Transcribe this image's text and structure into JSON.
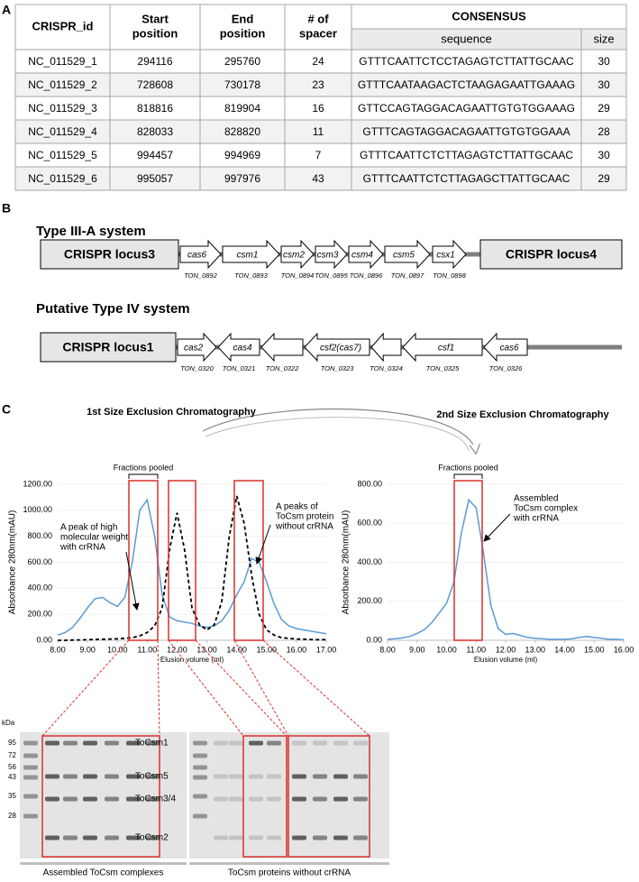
{
  "panel_labels": [
    "A",
    "B",
    "C"
  ],
  "table": {
    "header": [
      [
        "CRISPR_id"
      ],
      [
        "Start",
        "position"
      ],
      [
        "End",
        "position"
      ],
      [
        "# of",
        "spacer"
      ]
    ],
    "consensus": "CONSENSUS",
    "subheader": [
      "sequence",
      "size"
    ],
    "rows": [
      [
        "NC_011529_1",
        294116,
        295760,
        24,
        "GTTTCAATTCTCCTAGAGTCTTATTGCAAC",
        30
      ],
      [
        "NC_011529_2",
        728608,
        730178,
        23,
        "GTTTCAATAAGACTCTAAGAGAATTGAAAG",
        30
      ],
      [
        "NC_011529_3",
        818816,
        819904,
        16,
        "GTTCCAGTAGGACAGAATTGTGTGGAAAG",
        29
      ],
      [
        "NC_011529_4",
        828033,
        828820,
        11,
        "GTTTCAGTAGGACAGAATTGTGTGGAAA",
        28
      ],
      [
        "NC_011529_5",
        994457,
        994969,
        7,
        "GTTTCAATTCTCTTAGAGTCTTATTGCAAC",
        30
      ],
      [
        "NC_011529_6",
        995057,
        997976,
        43,
        "GTTTCAATTCTCTTAGAGCTTATTGCAAC",
        29
      ]
    ]
  },
  "systems": [
    {
      "title": "Type III-A system",
      "left": "CRISPR locus3",
      "right": "CRISPR locus4",
      "genes": [
        {
          "name": "cas6",
          "id": "TON_0892"
        },
        {
          "name": "csm1",
          "id": "TON_0893"
        },
        {
          "name": "csm2",
          "id": "TON_0894"
        },
        {
          "name": "csm3",
          "id": "TON_0895"
        },
        {
          "name": "csm4",
          "id": "TON_0896"
        },
        {
          "name": "csm5",
          "id": "TON_0897"
        },
        {
          "name": "csx1",
          "id": "TON_0898"
        }
      ]
    },
    {
      "title": "Putative Type IV system",
      "left": "CRISPR locus1",
      "genes": [
        {
          "name": "cas2",
          "id": "TON_0320"
        },
        {
          "name": "cas4",
          "id": "TON_0321"
        },
        {
          "id": "TON_0322"
        },
        {
          "name": "csf2(cas7)",
          "id": "TON_0323"
        },
        {
          "id": "TON_0324"
        },
        {
          "name": "csf1",
          "id": "TON_0325"
        },
        {
          "name": "cas6",
          "id": "TON_0326"
        }
      ]
    }
  ],
  "chart_data": [
    {
      "type": "line",
      "title": "1st Size Exclusion Chromatography",
      "xlabel": "Elusion volume (ml)",
      "ylabel": "Absorbance 280nm(mAU)",
      "fraction_label": "Fractions pooled",
      "annotations": [
        [
          "A peak of high",
          "molecular weight",
          "with crRNA"
        ],
        [
          "A peaks of",
          "ToCsm protein",
          "without crRNA"
        ]
      ],
      "x": [
        8,
        8.25,
        8.5,
        8.75,
        9,
        9.25,
        9.5,
        9.75,
        10,
        10.25,
        10.5,
        10.75,
        11,
        11.25,
        11.5,
        11.75,
        12,
        12.25,
        12.5,
        12.75,
        13,
        13.25,
        13.5,
        13.75,
        14,
        14.25,
        14.5,
        14.75,
        15,
        15.25,
        15.5,
        15.75,
        16,
        16.25,
        16.5,
        16.75,
        17
      ],
      "series": [
        {
          "color": "#5b9bd5",
          "dashed": false,
          "values": [
            40,
            60,
            100,
            170,
            250,
            320,
            330,
            290,
            260,
            330,
            600,
            1000,
            1080,
            800,
            350,
            180,
            150,
            140,
            130,
            110,
            100,
            110,
            150,
            230,
            350,
            450,
            630,
            600,
            450,
            280,
            160,
            110,
            90,
            80,
            70,
            60,
            50
          ]
        },
        {
          "color": "#000000",
          "dashed": true,
          "values": [
            0,
            0,
            2,
            3,
            5,
            6,
            8,
            10,
            12,
            15,
            20,
            35,
            60,
            110,
            250,
            700,
            980,
            700,
            250,
            120,
            80,
            120,
            300,
            800,
            1110,
            900,
            500,
            200,
            80,
            40,
            20,
            15,
            10,
            8,
            6,
            5,
            5
          ]
        }
      ],
      "xlim": [
        8,
        17
      ],
      "xticks": [
        {
          "value": 8,
          "label": "8.00"
        },
        {
          "value": 9,
          "label": "9.00"
        },
        {
          "value": 10,
          "label": "10.00"
        },
        {
          "value": 11,
          "label": "11.00"
        },
        {
          "value": 12,
          "label": "12.00"
        },
        {
          "value": 13,
          "label": "13.00"
        },
        {
          "value": 14,
          "label": "14.00"
        },
        {
          "value": 15,
          "label": "15.00"
        },
        {
          "value": 16,
          "label": "16.00"
        },
        {
          "value": 17,
          "label": "17.00"
        }
      ],
      "ylim": [
        0,
        1200
      ],
      "yticks": [
        {
          "value": 0,
          "label": "0.00"
        },
        {
          "value": 200,
          "label": "200.00"
        },
        {
          "value": 400,
          "label": "400.00"
        },
        {
          "value": 600,
          "label": "600.00"
        },
        {
          "value": 800,
          "label": "800.00"
        },
        {
          "value": 1000,
          "label": "1000.00"
        },
        {
          "value": 1200,
          "label": "1200.00"
        }
      ]
    },
    {
      "type": "line",
      "title": "2nd Size Exclusion Chromatography",
      "xlabel": "Elusion volume (ml)",
      "ylabel": "Absorbance 280nm(mAU)",
      "fraction_label": "Fractions pooled",
      "annotations": [
        [
          "Assembled",
          "ToCsm complex",
          "with crRNA"
        ]
      ],
      "x": [
        8,
        8.25,
        8.5,
        8.75,
        9,
        9.25,
        9.5,
        9.75,
        10,
        10.25,
        10.5,
        10.75,
        11,
        11.25,
        11.5,
        11.75,
        12,
        12.25,
        12.5,
        12.75,
        13,
        13.25,
        13.5,
        13.75,
        14,
        14.25,
        14.5,
        14.75,
        15,
        15.25,
        15.5,
        15.75,
        16
      ],
      "series": [
        {
          "color": "#5b9bd5",
          "dashed": false,
          "values": [
            5,
            8,
            12,
            20,
            35,
            55,
            90,
            140,
            190,
            300,
            550,
            720,
            680,
            450,
            180,
            60,
            30,
            35,
            25,
            15,
            10,
            8,
            5,
            5,
            5,
            8,
            15,
            20,
            15,
            10,
            5,
            5,
            3
          ]
        }
      ],
      "xlim": [
        8,
        16
      ],
      "xticks": [
        {
          "value": 8,
          "label": "8.00"
        },
        {
          "value": 9,
          "label": "9.00"
        },
        {
          "value": 10,
          "label": "10.00"
        },
        {
          "value": 11,
          "label": "11.00"
        },
        {
          "value": 12,
          "label": "12.00"
        },
        {
          "value": 13,
          "label": "13.00"
        },
        {
          "value": 14,
          "label": "14.00"
        },
        {
          "value": 15,
          "label": "15.00"
        },
        {
          "value": 16,
          "label": "16.00"
        }
      ],
      "ylim": [
        0,
        800
      ],
      "yticks": [
        {
          "value": 0,
          "label": "0.00"
        },
        {
          "value": 200,
          "label": "200.00"
        },
        {
          "value": 400,
          "label": "400.00"
        },
        {
          "value": 600,
          "label": "600.00"
        },
        {
          "value": 800,
          "label": "800.00"
        }
      ]
    }
  ],
  "gel": {
    "unit": "kDa",
    "markers": [
      95,
      72,
      56,
      43,
      35,
      28
    ],
    "bands": [
      "ToCsm1",
      "ToCsm5",
      "ToCsm3/4",
      "ToCsm2"
    ],
    "captions": [
      "Assembled ToCsm complexes",
      "ToCsm proteins without crRNA"
    ]
  }
}
